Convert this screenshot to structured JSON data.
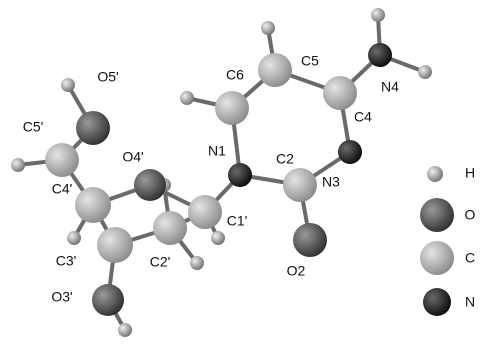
{
  "atoms": [
    {
      "label": "O5'"
    },
    {
      "label": "C5'"
    },
    {
      "label": "O4'"
    },
    {
      "label": "C4'"
    },
    {
      "label": "C3'"
    },
    {
      "label": "O3'"
    },
    {
      "label": "C2'"
    },
    {
      "label": "C1'"
    },
    {
      "label": "N1"
    },
    {
      "label": "C2"
    },
    {
      "label": "O2"
    },
    {
      "label": "N3"
    },
    {
      "label": "C4"
    },
    {
      "label": "N4"
    },
    {
      "label": "C5"
    },
    {
      "label": "C6"
    }
  ],
  "legend": [
    {
      "label": "H"
    },
    {
      "label": "O"
    },
    {
      "label": "C"
    },
    {
      "label": "N"
    }
  ]
}
